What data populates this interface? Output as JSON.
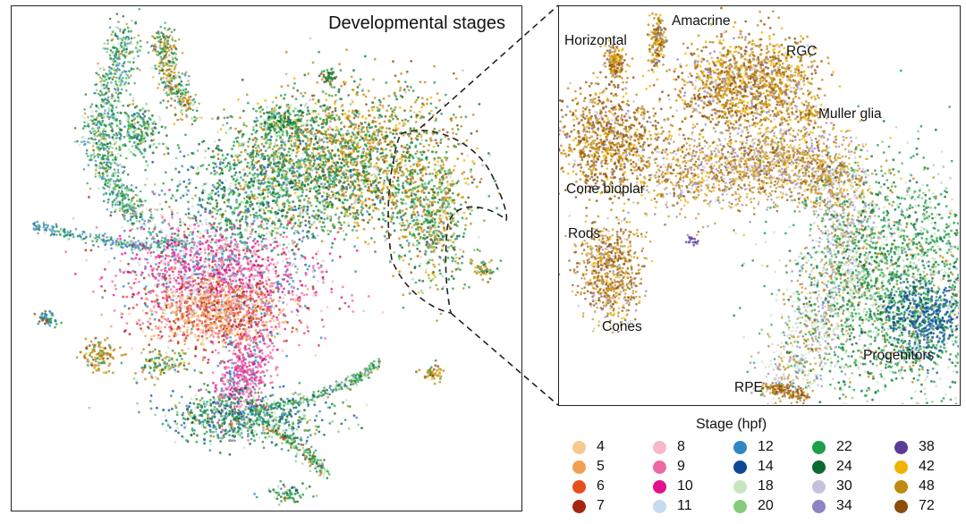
{
  "left_panel": {
    "title": "Developmental stages"
  },
  "right_panel": {
    "labels": {
      "amacrine": "Amacrine",
      "horizontal": "Horizontal",
      "rgc": "RGC",
      "muller_glia": "Muller glia",
      "cone_bipolar": "Cone bioplar",
      "rods": "Rods",
      "cones": "Cones",
      "progenitors": "Progenitors",
      "rpe": "RPE"
    }
  },
  "legend": {
    "title": "Stage (hpf)",
    "items": [
      {
        "label": "4",
        "color": "#f6c98f"
      },
      {
        "label": "5",
        "color": "#f0a050"
      },
      {
        "label": "6",
        "color": "#e5501c"
      },
      {
        "label": "7",
        "color": "#a5260f"
      },
      {
        "label": "8",
        "color": "#f7b8c8"
      },
      {
        "label": "9",
        "color": "#ee6aa4"
      },
      {
        "label": "10",
        "color": "#e2108a"
      },
      {
        "label": "11",
        "color": "#c6dbef"
      },
      {
        "label": "12",
        "color": "#3286c3"
      },
      {
        "label": "14",
        "color": "#0c4a97"
      },
      {
        "label": "18",
        "color": "#c7e6bd"
      },
      {
        "label": "20",
        "color": "#86cc7c"
      },
      {
        "label": "22",
        "color": "#1f9e4a"
      },
      {
        "label": "24",
        "color": "#0b6a2e"
      },
      {
        "label": "30",
        "color": "#c4c1df"
      },
      {
        "label": "34",
        "color": "#8c84c3"
      },
      {
        "label": "38",
        "color": "#5b3b98"
      },
      {
        "label": "42",
        "color": "#f0b400"
      },
      {
        "label": "48",
        "color": "#c08a12"
      },
      {
        "label": "72",
        "color": "#8c4e0b"
      }
    ]
  },
  "chart_data": [
    {
      "type": "scatter",
      "title": "Developmental stages",
      "xlabel": "",
      "ylabel": "",
      "color_by": "Stage (hpf)",
      "stages": [
        4,
        5,
        6,
        7,
        8,
        9,
        10,
        11,
        12,
        14,
        18,
        20,
        22,
        24,
        30,
        34,
        38,
        42,
        48,
        72
      ]
    },
    {
      "type": "scatter",
      "title": "",
      "xlabel": "",
      "ylabel": "",
      "color_by": "Stage (hpf)",
      "cluster_labels": [
        "Amacrine",
        "Horizontal",
        "RGC",
        "Muller glia",
        "Cone bioplar",
        "Rods",
        "Cones",
        "Progenitors",
        "RPE"
      ]
    }
  ]
}
